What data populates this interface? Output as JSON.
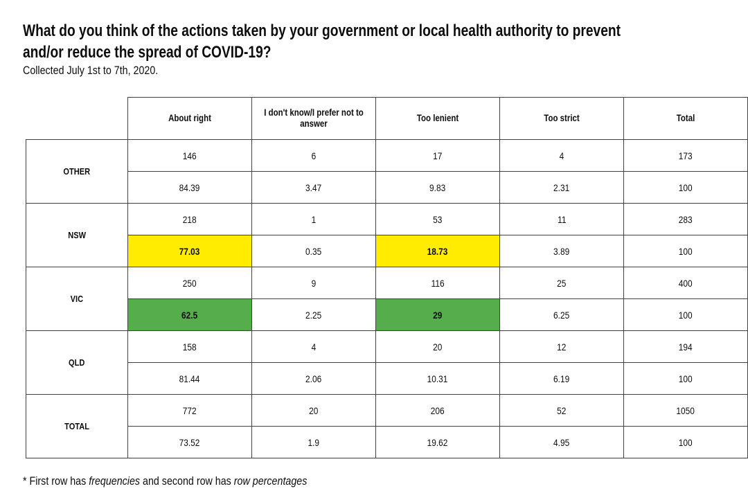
{
  "page": {
    "title_lines": [
      "What do you think of the actions taken by your government or local health authority to prevent",
      "and/or reduce the spread of COVID-19?"
    ],
    "subtitle": "Collected July 1st to 7th, 2020.",
    "footnote": {
      "prefix": "* First row has ",
      "term1": "frequencies",
      "middle": " and second row has ",
      "term2": "row percentages"
    }
  },
  "colors": {
    "highlight_yellow": "#ffec00",
    "highlight_green": "#55ad4c",
    "border": "#404040",
    "text": "#0d0d0d"
  },
  "chart_data": {
    "type": "table",
    "title": "What do you think of the actions taken by your government or local health authority to prevent and/or reduce the spread of COVID-19?",
    "subtitle": "Collected July 1st to 7th, 2020.",
    "annotation": "* First row has frequencies and second row has row percentages",
    "column_headers": [
      "About right",
      "I don't know/I prefer not to answer",
      "Too lenient",
      "Too strict",
      "Total"
    ],
    "rows": [
      {
        "label": "OTHER",
        "frequencies": [
          146,
          6,
          17,
          4,
          173
        ],
        "row_percentages": [
          84.39,
          3.47,
          9.83,
          2.31,
          100
        ],
        "highlights": [
          null,
          null,
          null,
          null,
          null
        ]
      },
      {
        "label": "NSW",
        "frequencies": [
          218,
          1,
          53,
          11,
          283
        ],
        "row_percentages": [
          77.03,
          0.35,
          18.73,
          3.89,
          100
        ],
        "highlights": [
          "yellow",
          null,
          "yellow",
          null,
          null
        ]
      },
      {
        "label": "VIC",
        "frequencies": [
          250,
          9,
          116,
          25,
          400
        ],
        "row_percentages": [
          62.5,
          2.25,
          29,
          6.25,
          100
        ],
        "highlights": [
          "green",
          null,
          "green",
          null,
          null
        ]
      },
      {
        "label": "QLD",
        "frequencies": [
          158,
          4,
          20,
          12,
          194
        ],
        "row_percentages": [
          81.44,
          2.06,
          10.31,
          6.19,
          100
        ],
        "highlights": [
          null,
          null,
          null,
          null,
          null
        ]
      },
      {
        "label": "TOTAL",
        "frequencies": [
          772,
          20,
          206,
          52,
          1050
        ],
        "row_percentages": [
          73.52,
          1.9,
          19.62,
          4.95,
          100
        ],
        "highlights": [
          null,
          null,
          null,
          null,
          null
        ]
      }
    ]
  }
}
